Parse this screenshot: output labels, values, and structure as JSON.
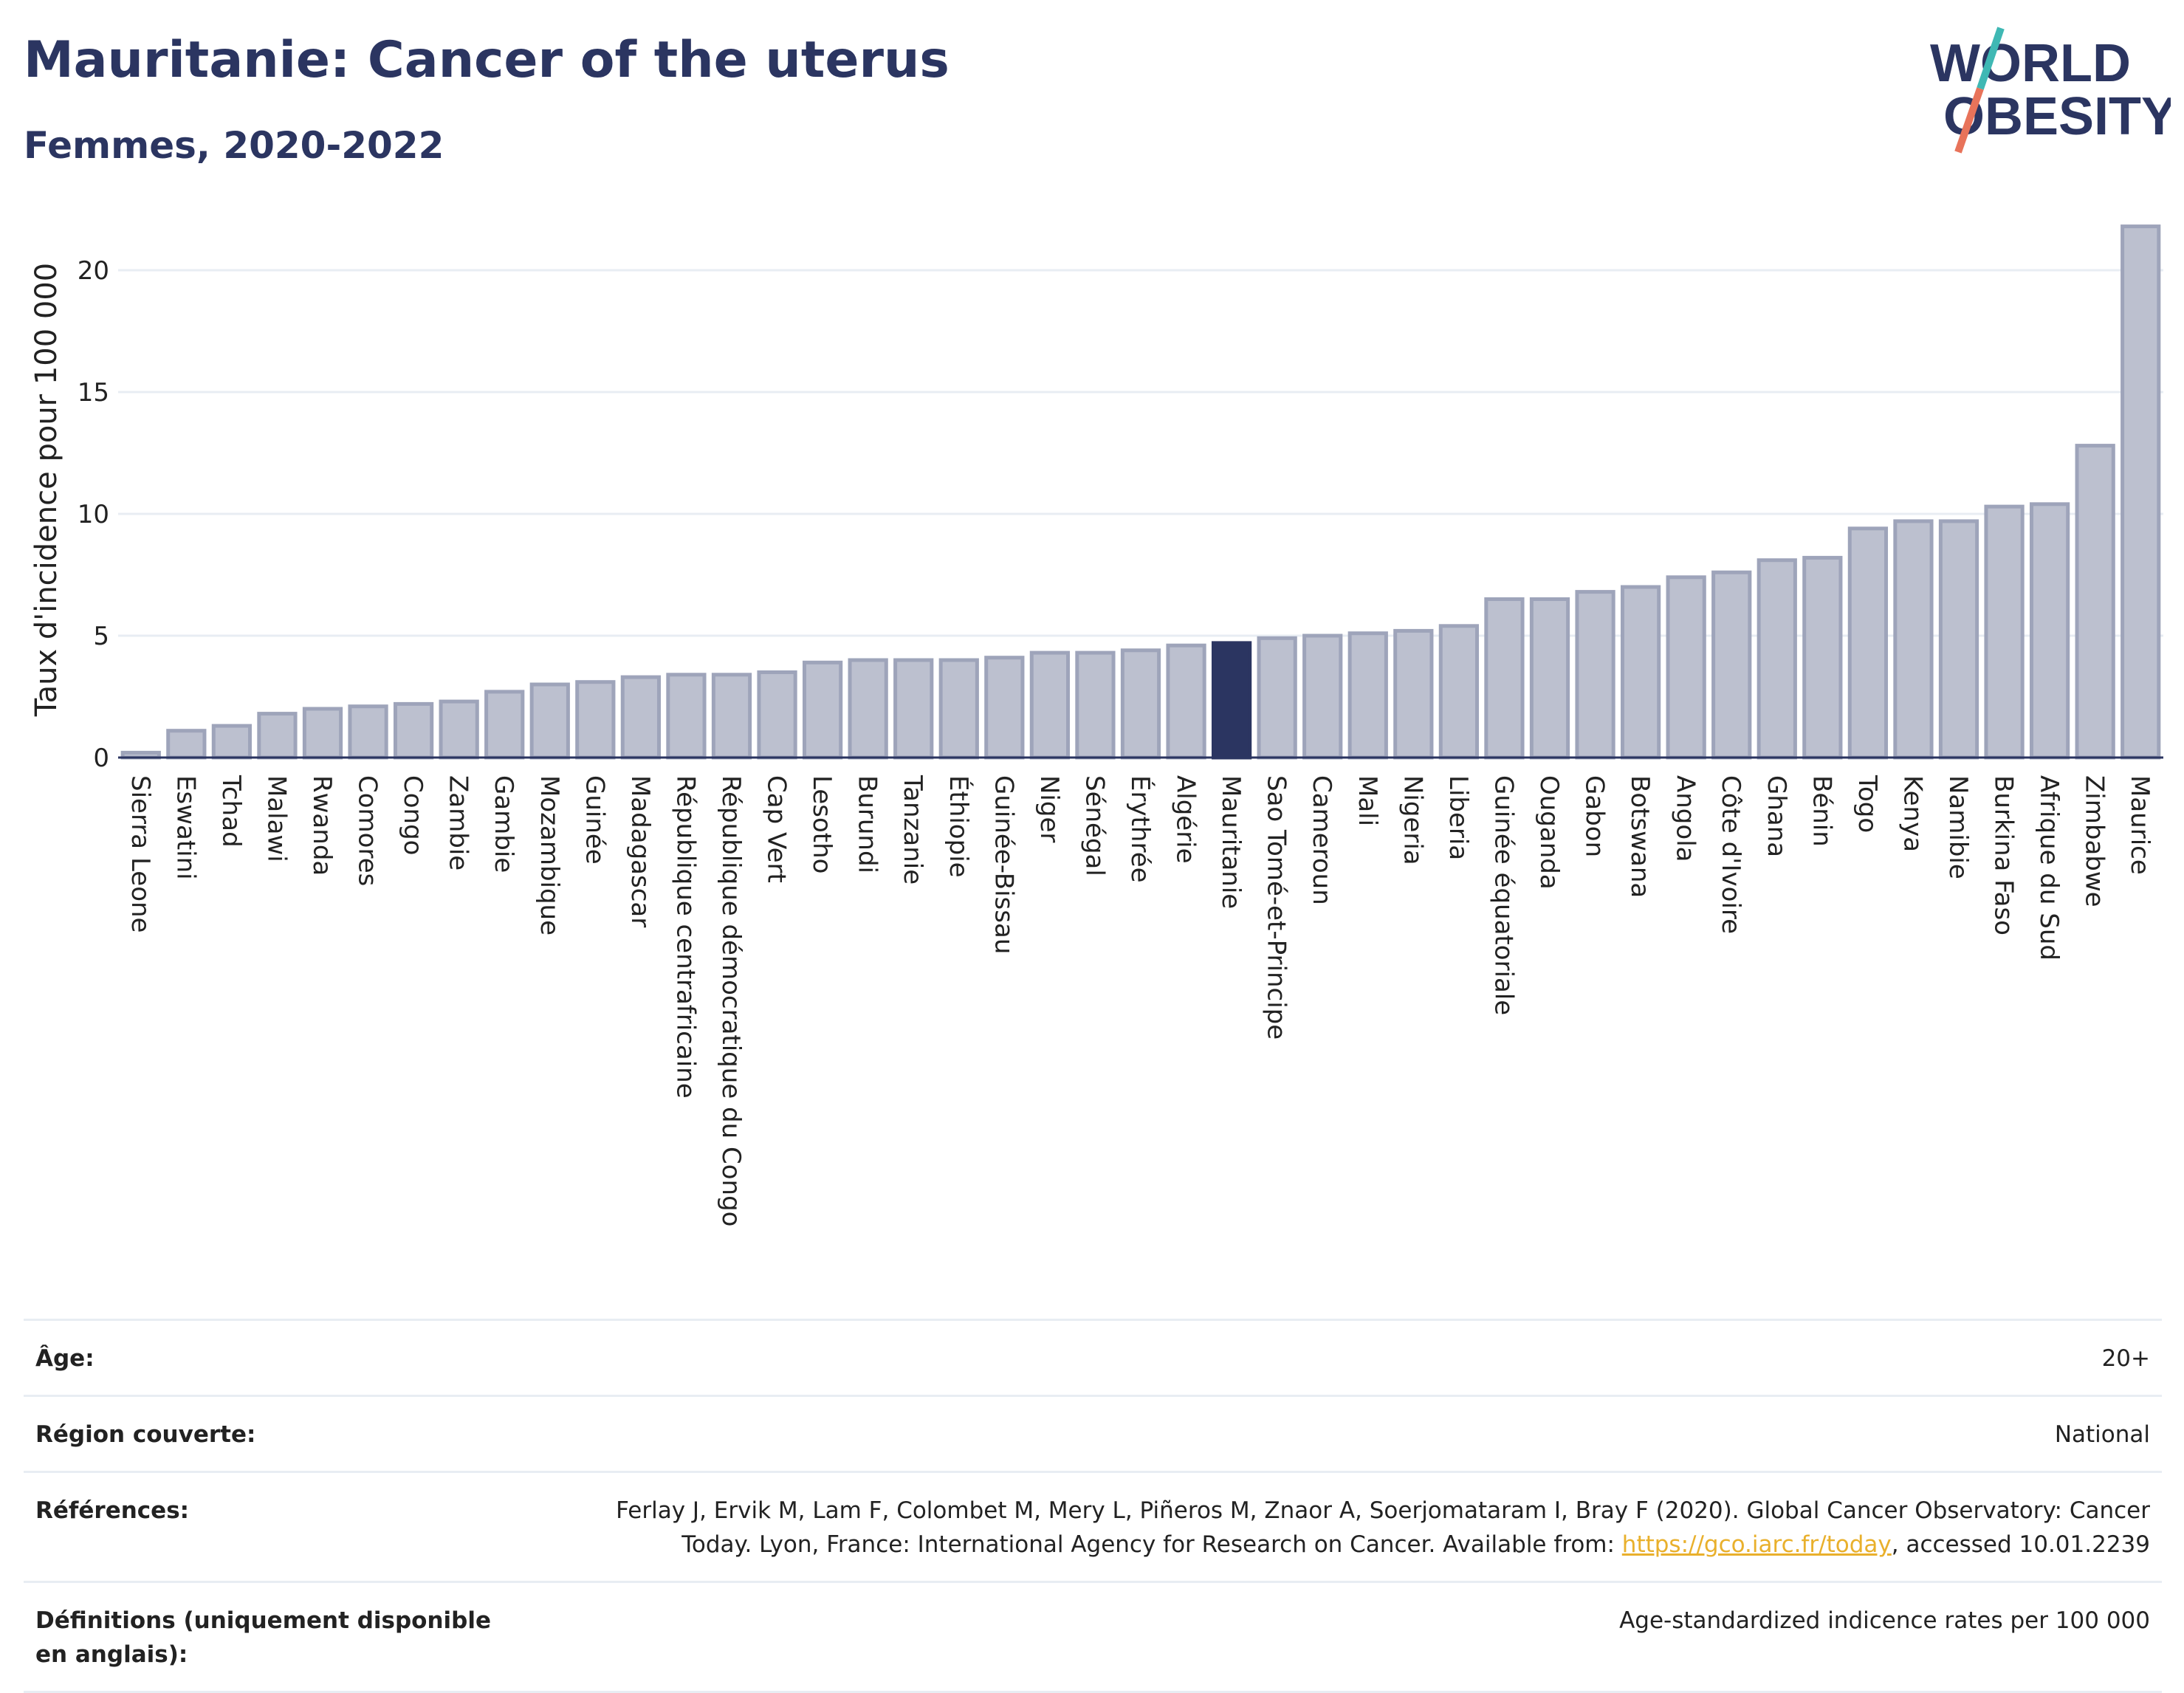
{
  "header": {
    "title": "Mauritanie: Cancer of the uterus",
    "subtitle": "Femmes, 2020-2022"
  },
  "logo": {
    "text_line1": "WORLD",
    "text_line2": "OBESITY",
    "colors": {
      "text": "#2b3561",
      "slash_top": "#3fb8b4",
      "slash_bottom": "#e8735a"
    }
  },
  "colors": {
    "bar_fill": "#bcc0cf",
    "bar_stroke": "#9ea4ba",
    "highlight_fill": "#2b3561",
    "gridline": "#e8edf3",
    "baseline": "#2b3561"
  },
  "chart_data": {
    "type": "bar",
    "ylabel": "Taux d'incidence pour 100 000",
    "ylim": [
      0,
      22
    ],
    "yticks": [
      0,
      5,
      10,
      15,
      20
    ],
    "grid": true,
    "highlight": "Mauritanie",
    "categories": [
      "Sierra Leone",
      "Eswatini",
      "Tchad",
      "Malawi",
      "Rwanda",
      "Comores",
      "Congo",
      "Zambie",
      "Gambie",
      "Mozambique",
      "Guinée",
      "Madagascar",
      "République centrafricaine",
      "République démocratique du Congo",
      "Cap Vert",
      "Lesotho",
      "Burundi",
      "Tanzanie",
      "Éthiopie",
      "Guinée-Bissau",
      "Niger",
      "Sénégal",
      "Érythrée",
      "Algérie",
      "Mauritanie",
      "Sao Tomé-et-Principe",
      "Cameroun",
      "Mali",
      "Nigeria",
      "Liberia",
      "Guinée équatoriale",
      "Ouganda",
      "Gabon",
      "Botswana",
      "Angola",
      "Côte d'Ivoire",
      "Ghana",
      "Bénin",
      "Togo",
      "Kenya",
      "Namibie",
      "Burkina Faso",
      "Afrique du Sud",
      "Zimbabwe",
      "Maurice"
    ],
    "values": [
      0.2,
      1.1,
      1.3,
      1.8,
      2.0,
      2.1,
      2.2,
      2.3,
      2.7,
      3.0,
      3.1,
      3.3,
      3.4,
      3.4,
      3.5,
      3.9,
      4.0,
      4.0,
      4.0,
      4.1,
      4.3,
      4.3,
      4.4,
      4.6,
      4.7,
      4.9,
      5.0,
      5.1,
      5.2,
      5.4,
      6.5,
      6.5,
      6.8,
      7.0,
      7.4,
      7.6,
      8.1,
      8.2,
      9.4,
      9.7,
      9.7,
      10.3,
      10.4,
      12.8,
      21.8
    ]
  },
  "meta": [
    {
      "key": "Âge:",
      "value": "20+"
    },
    {
      "key": "Région couverte:",
      "value": "National"
    },
    {
      "key": "Références:",
      "value_before": "Ferlay J, Ervik M, Lam F, Colombet M, Mery L, Piñeros M, Znaor A, Soerjomataram I, Bray F (2020). Global Cancer Observatory: Cancer Today. Lyon, France: International Agency for Research on Cancer. Available from: ",
      "link": "https://gco.iarc.fr/today",
      "value_after": ", accessed 10.01.2239"
    },
    {
      "key": "Définitions (uniquement disponible en anglais):",
      "value": "Age-standardized indicence rates per 100 000"
    }
  ]
}
